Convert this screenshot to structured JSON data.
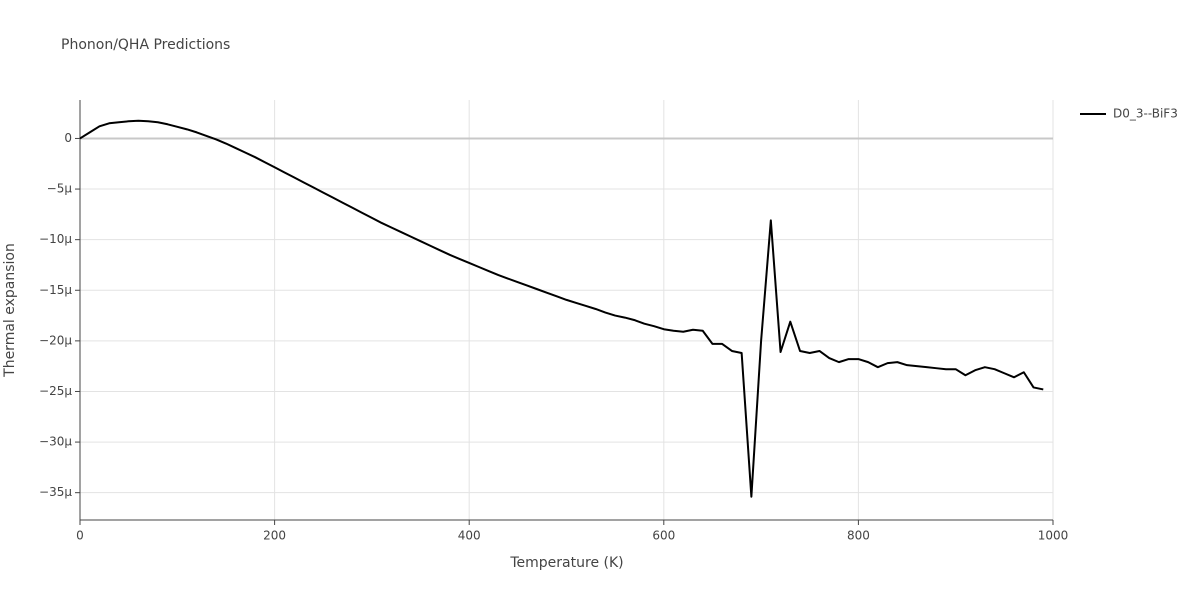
{
  "chart_data": {
    "type": "line",
    "title": "Phonon/QHA Predictions",
    "x_label": "Temperature (K)",
    "y_label": "Thermal expansion",
    "x": [
      0,
      10,
      20,
      30,
      40,
      50,
      60,
      70,
      80,
      90,
      100,
      110,
      120,
      130,
      140,
      150,
      160,
      170,
      180,
      190,
      200,
      210,
      220,
      230,
      240,
      250,
      260,
      270,
      280,
      290,
      300,
      310,
      320,
      330,
      340,
      350,
      360,
      370,
      380,
      390,
      400,
      410,
      420,
      430,
      440,
      450,
      460,
      470,
      480,
      490,
      500,
      510,
      520,
      530,
      540,
      550,
      560,
      570,
      580,
      590,
      600,
      610,
      620,
      630,
      640,
      650,
      660,
      670,
      680,
      690,
      700,
      710,
      720,
      730,
      740,
      750,
      760,
      770,
      780,
      790,
      800,
      810,
      820,
      830,
      840,
      850,
      860,
      870,
      880,
      890,
      900,
      910,
      920,
      930,
      940,
      950,
      960,
      970,
      980,
      990
    ],
    "series": [
      {
        "name": "D0_3--BiF3",
        "color": "#000000",
        "values": [
          0,
          6e-07,
          1.2e-06,
          1.5e-06,
          1.6e-06,
          1.7e-06,
          1.75e-06,
          1.7e-06,
          1.6e-06,
          1.4e-06,
          1.15e-06,
          9e-07,
          6e-07,
          2.5e-07,
          -1e-07,
          -5e-07,
          -9.5e-07,
          -1.4e-06,
          -1.85e-06,
          -2.35e-06,
          -2.85e-06,
          -3.35e-06,
          -3.85e-06,
          -4.35e-06,
          -4.85e-06,
          -5.35e-06,
          -5.85e-06,
          -6.35e-06,
          -6.85e-06,
          -7.35e-06,
          -7.85e-06,
          -8.35e-06,
          -8.8e-06,
          -9.25e-06,
          -9.7e-06,
          -1.015e-05,
          -1.06e-05,
          -1.105e-05,
          -1.15e-05,
          -1.19e-05,
          -1.23e-05,
          -1.27e-05,
          -1.31e-05,
          -1.35e-05,
          -1.385e-05,
          -1.42e-05,
          -1.455e-05,
          -1.49e-05,
          -1.525e-05,
          -1.56e-05,
          -1.595e-05,
          -1.625e-05,
          -1.655e-05,
          -1.685e-05,
          -1.72e-05,
          -1.75e-05,
          -1.77e-05,
          -1.795e-05,
          -1.83e-05,
          -1.855e-05,
          -1.885e-05,
          -1.9e-05,
          -1.91e-05,
          -1.89e-05,
          -1.9e-05,
          -2.03e-05,
          -2.03e-05,
          -2.1e-05,
          -2.12e-05,
          -3.54e-05,
          -2e-05,
          -8.1e-06,
          -2.11e-05,
          -1.81e-05,
          -2.1e-05,
          -2.12e-05,
          -2.1e-05,
          -2.17e-05,
          -2.21e-05,
          -2.18e-05,
          -2.18e-05,
          -2.21e-05,
          -2.26e-05,
          -2.22e-05,
          -2.21e-05,
          -2.24e-05,
          -2.25e-05,
          -2.26e-05,
          -2.27e-05,
          -2.28e-05,
          -2.28e-05,
          -2.34e-05,
          -2.29e-05,
          -2.26e-05,
          -2.28e-05,
          -2.32e-05,
          -2.36e-05,
          -2.31e-05,
          -2.46e-05,
          -2.48e-05
        ]
      }
    ],
    "xlim": [
      0,
      1000
    ],
    "xticks": [
      0,
      200,
      400,
      600,
      800,
      1000
    ],
    "ylim": [
      -3.77e-05,
      3.8e-06
    ],
    "yticks": [
      0,
      {
        "value": -5e-06,
        "label": "−5μ"
      },
      {
        "value": -1e-05,
        "label": "−10μ"
      },
      {
        "value": -1.5e-05,
        "label": "−15μ"
      },
      {
        "value": -2e-05,
        "label": "−20μ"
      },
      {
        "value": -2.5e-05,
        "label": "−25μ"
      },
      {
        "value": -3e-05,
        "label": "−30μ"
      },
      {
        "value": -3.5e-05,
        "label": "−35μ"
      }
    ],
    "grid": true
  }
}
